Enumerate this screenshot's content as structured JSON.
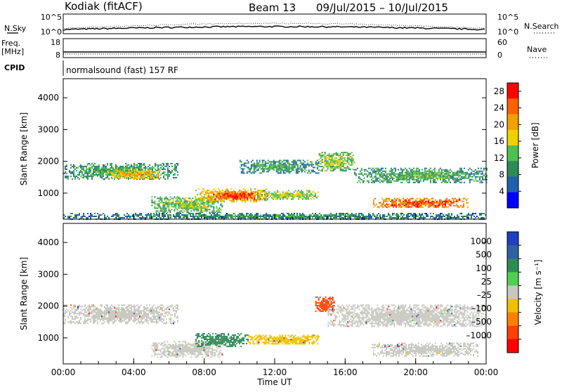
{
  "header": {
    "station": "Kodiak (fitACF)",
    "beam": "Beam 13",
    "date_range": "09/Jul/2015 – 10/Jul/2015"
  },
  "strip_panels": {
    "nsky_label": "N.Sky",
    "nsky_ticks": [
      "10^5",
      "10^0"
    ],
    "nsearch_label": "N.Search",
    "nsearch_ticks": [
      "10^5",
      "10^0"
    ],
    "freq_label": [
      "Freq.",
      "[MHz]"
    ],
    "freq_ticks": [
      "18",
      "8"
    ],
    "nave_label": "Nave",
    "nave_ticks": [
      "60",
      "0"
    ],
    "cpid_label": "CPID",
    "cpid_text": "normalsound (fast) 157 RF"
  },
  "colors": {
    "power_scale": [
      "#0000ff",
      "#2060b0",
      "#2e8b57",
      "#4fc04f",
      "#f0d000",
      "#f0a000",
      "#ff6000",
      "#ff0000"
    ],
    "velocity_scale": [
      "#2040c0",
      "#3060a0",
      "#2e8b57",
      "#50d050",
      "#c8c8c0",
      "#f0c000",
      "#ff8000",
      "#ff4000",
      "#ff0000"
    ],
    "background": "#ffffff"
  },
  "chart_data": [
    {
      "type": "heatmap",
      "title": "",
      "xlabel": "",
      "ylabel": "Slant Range [km]",
      "xlim": [
        0,
        24
      ],
      "ylim": [
        180,
        4600
      ],
      "x_ticks": [
        "00:00",
        "04:00",
        "08:00",
        "12:00",
        "16:00",
        "20:00",
        "00:00"
      ],
      "y_ticks": [
        1000,
        2000,
        3000,
        4000
      ],
      "colorbar_label": "Power [dB]",
      "colorbar_ticks": [
        "4",
        "8",
        "12",
        "16",
        "20",
        "24",
        "28"
      ],
      "colorbar_range": [
        0,
        30
      ],
      "scatter_regions": [
        {
          "t_start": 0.0,
          "t_end": 6.5,
          "r_low": 1450,
          "r_high": 1950,
          "power": 13
        },
        {
          "t_start": 2.5,
          "t_end": 5.5,
          "r_low": 1450,
          "r_high": 1750,
          "power": 21
        },
        {
          "t_start": 5.0,
          "t_end": 9.0,
          "r_low": 400,
          "r_high": 900,
          "power": 15
        },
        {
          "t_start": 7.5,
          "t_end": 11.5,
          "r_low": 750,
          "r_high": 1150,
          "power": 22
        },
        {
          "t_start": 8.5,
          "t_end": 11.0,
          "r_low": 800,
          "r_high": 1050,
          "power": 28
        },
        {
          "t_start": 11.0,
          "t_end": 14.5,
          "r_low": 800,
          "r_high": 1100,
          "power": 17
        },
        {
          "t_start": 10.0,
          "t_end": 14.5,
          "r_low": 1650,
          "r_high": 2050,
          "power": 12
        },
        {
          "t_start": 14.5,
          "t_end": 16.5,
          "r_low": 1700,
          "r_high": 2300,
          "power": 16
        },
        {
          "t_start": 16.5,
          "t_end": 24.0,
          "r_low": 1350,
          "r_high": 1800,
          "power": 13
        },
        {
          "t_start": 17.5,
          "t_end": 23.0,
          "r_low": 550,
          "r_high": 850,
          "power": 26
        },
        {
          "t_start": 0.0,
          "t_end": 24.0,
          "r_low": 200,
          "r_high": 380,
          "power": 11
        }
      ]
    },
    {
      "type": "heatmap",
      "title": "",
      "xlabel": "Time UT",
      "ylabel": "Slant Range [km]",
      "xlim": [
        0,
        24
      ],
      "ylim": [
        180,
        4600
      ],
      "x_ticks": [
        "00:00",
        "04:00",
        "08:00",
        "12:00",
        "16:00",
        "20:00",
        "00:00"
      ],
      "y_ticks": [
        1000,
        2000,
        3000,
        4000
      ],
      "colorbar_label": "Velocity [m s^-1]",
      "colorbar_ticks": [
        "1000",
        "500",
        "100",
        "25",
        "–25",
        "–100",
        "–500",
        "–1000"
      ],
      "scatter_regions": [
        {
          "t_start": 0.0,
          "t_end": 6.5,
          "r_low": 1450,
          "r_high": 2050,
          "velocity": 0
        },
        {
          "t_start": 5.0,
          "t_end": 9.0,
          "r_low": 400,
          "r_high": 900,
          "velocity": 0
        },
        {
          "t_start": 7.5,
          "t_end": 10.5,
          "r_low": 750,
          "r_high": 1150,
          "velocity": 150
        },
        {
          "t_start": 10.5,
          "t_end": 14.5,
          "r_low": 800,
          "r_high": 1100,
          "velocity": -60
        },
        {
          "t_start": 14.3,
          "t_end": 15.4,
          "r_low": 1850,
          "r_high": 2300,
          "velocity": -700
        },
        {
          "t_start": 15.0,
          "t_end": 24.0,
          "r_low": 1350,
          "r_high": 2050,
          "velocity": 0
        },
        {
          "t_start": 17.5,
          "t_end": 23.5,
          "r_low": 450,
          "r_high": 850,
          "velocity": 0
        }
      ]
    }
  ]
}
